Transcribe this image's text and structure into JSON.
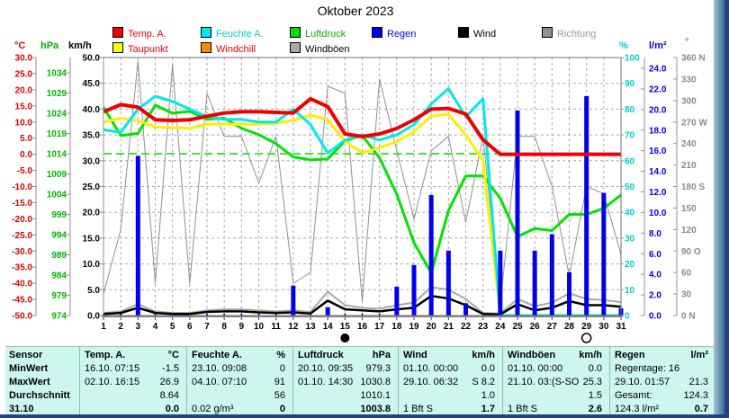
{
  "window": {
    "title": "Oktober 2023"
  },
  "units": {
    "temp": "°C",
    "pressure": "hPa",
    "wind": "km/h",
    "humidity": "%",
    "rain": "l/m²",
    "direction": "°"
  },
  "legend": {
    "row1": [
      {
        "label": "Temp. A.",
        "box": "#ee0000",
        "text": "#ee0000"
      },
      {
        "label": "Feuchte A.",
        "box": "#00e8e8",
        "text": "#00cccc"
      },
      {
        "label": "Luftdruck",
        "box": "#00dd00",
        "text": "#00b400"
      },
      {
        "label": "Regen",
        "box": "#0000ee",
        "text": "#0000e8"
      },
      {
        "label": "Wind",
        "box": "#000000",
        "text": "#000000"
      },
      {
        "label": "Richtung",
        "box": "#909090",
        "text": "#9a9a9a"
      }
    ],
    "row2": [
      {
        "label": "Taupunkt",
        "box": "#ffff00",
        "text": "#ee0000"
      },
      {
        "label": "Windchill",
        "box": "#ff8c00",
        "text": "#ee0000"
      },
      {
        "label": "Windböen",
        "box": "#a8a8a8",
        "text": "#000000"
      }
    ]
  },
  "chart_data": {
    "type": "line",
    "title": "Oktober 2023",
    "days": [
      1,
      2,
      3,
      4,
      5,
      6,
      7,
      8,
      9,
      10,
      11,
      12,
      13,
      14,
      15,
      16,
      17,
      18,
      19,
      20,
      21,
      22,
      23,
      24,
      25,
      26,
      27,
      28,
      29,
      30,
      31
    ],
    "axes": {
      "temp_c": {
        "range": [
          -50,
          30
        ],
        "step": 5,
        "decimals": 1,
        "color": "#e00000"
      },
      "pressure_hpa": {
        "range": [
          974,
          1034
        ],
        "step": 5,
        "decimals": 0,
        "color": "#00b400"
      },
      "wind_kmh": {
        "range": [
          0,
          50
        ],
        "step": 5,
        "decimals": 1,
        "color": "#000000"
      },
      "humidity_pct": {
        "range": [
          0,
          100
        ],
        "step": 10,
        "decimals": 0,
        "color": "#00cccc"
      },
      "rain_lm2": {
        "range": [
          0,
          24
        ],
        "step": 2,
        "decimals": 1,
        "color": "#0000e8"
      },
      "direction_deg": {
        "range": [
          0,
          360
        ],
        "step": 30,
        "labels": [
          "0  N",
          "30",
          "60",
          "90  O",
          "120",
          "150",
          "180 S",
          "210",
          "240",
          "270 W",
          "300",
          "330",
          "360 N"
        ],
        "color": "#8a8a8a"
      }
    },
    "series": [
      {
        "name": "Richtung",
        "axis": "direction_deg",
        "color": "#909090",
        "width": 1,
        "values": [
          30,
          120,
          355,
          45,
          350,
          45,
          310,
          250,
          250,
          185,
          250,
          45,
          60,
          320,
          310,
          20,
          330,
          230,
          135,
          230,
          250,
          130,
          250,
          15,
          250,
          250,
          180,
          55,
          180,
          170,
          85
        ]
      },
      {
        "name": "Luftdruck",
        "axis": "pressure_hpa",
        "color": "#00e400",
        "width": 3,
        "values": [
          1025.5,
          1018.5,
          1019,
          1026,
          1024,
          1024.5,
          1022.5,
          1022.8,
          1020.3,
          1018.7,
          1016.5,
          1013.2,
          1012.5,
          1012.7,
          1017.2,
          1018.5,
          1013,
          1004,
          992,
          984.5,
          1000,
          1008.5,
          1008.5,
          1003,
          993.5,
          995.5,
          995,
          999,
          999,
          1000.5,
          1003.8
        ]
      },
      {
        "name": "Taupunkt",
        "axis": "temp_c",
        "color": "#ffee00",
        "width": 3,
        "values": [
          10,
          11.2,
          10.4,
          8.5,
          8.3,
          8,
          9.3,
          9.3,
          9.3,
          9.3,
          9.6,
          10.5,
          12.1,
          10.7,
          4,
          0.5,
          2,
          4,
          7,
          11.9,
          12.4,
          6,
          -2,
          -50,
          -50,
          -50,
          -50,
          -50,
          -50,
          -50,
          -50
        ]
      },
      {
        "name": "Feuchte A.",
        "axis": "humidity_pct",
        "color": "#00e8e8",
        "width": 3,
        "values": [
          72,
          71,
          80,
          85,
          83,
          80,
          77,
          76,
          76,
          75,
          75,
          80,
          74,
          63,
          68,
          70,
          68,
          70,
          74,
          82,
          88,
          77,
          84,
          0,
          0,
          0,
          0,
          0,
          0,
          0,
          0
        ]
      },
      {
        "name": "Windböen",
        "axis": "wind_kmh",
        "color": "#a8a8a8",
        "width": 2,
        "values": [
          0.5,
          0.8,
          2.2,
          0.8,
          0.5,
          0.5,
          1,
          1.2,
          1.2,
          1,
          0.8,
          1,
          0.7,
          4.6,
          2,
          1.5,
          1.3,
          2,
          2.5,
          5.5,
          5,
          3.2,
          0.5,
          0.4,
          3.2,
          1.8,
          2.5,
          4.3,
          3.2,
          3,
          2.6
        ]
      },
      {
        "name": "Wind",
        "axis": "wind_kmh",
        "color": "#000000",
        "width": 2.5,
        "values": [
          0.3,
          0.5,
          1.5,
          0.5,
          0.3,
          0.3,
          0.7,
          0.8,
          0.8,
          0.6,
          0.5,
          0.6,
          0.4,
          2.9,
          1.2,
          1,
          0.8,
          1.2,
          1.5,
          3.8,
          3.3,
          2,
          0.3,
          0.2,
          2.2,
          1,
          1.5,
          2.8,
          2,
          2,
          1.7
        ]
      },
      {
        "name": "Temp. A.",
        "axis": "temp_c",
        "color": "#ee0000",
        "width": 4,
        "values": [
          13.2,
          15.4,
          14.6,
          10.7,
          10.5,
          10.7,
          11.8,
          12.8,
          13.2,
          13.2,
          13,
          12.8,
          17.2,
          14.8,
          6.3,
          5.5,
          6.3,
          8,
          10.7,
          14,
          14.2,
          12.5,
          4.5,
          0,
          0,
          0,
          0,
          0,
          0,
          0,
          0
        ]
      }
    ],
    "bars": {
      "name": "Regen",
      "axis": "rain_lm2",
      "color": "#0000ee",
      "values": [
        0,
        0,
        15.5,
        0,
        0,
        0,
        0,
        0,
        0,
        0,
        0,
        2.9,
        0,
        0.8,
        0,
        0,
        0,
        2.8,
        4.9,
        11.7,
        6.3,
        1.2,
        0,
        6.3,
        19.9,
        6.3,
        7.9,
        4.2,
        21.3,
        11.9,
        0.7
      ]
    },
    "reference_line": {
      "axis": "pressure_hpa",
      "value": 1014,
      "color": "#00dd00",
      "style": "dashed"
    },
    "annotations": [
      {
        "day": 15,
        "symbol": "new-moon"
      },
      {
        "day": 29,
        "symbol": "full-moon"
      }
    ]
  },
  "table": {
    "row_labels": [
      "Sensor",
      "MinWert",
      "MaxWert",
      "Durchschnitt",
      "31.10"
    ],
    "columns": [
      {
        "name": "Temp. A.",
        "unit": "°C",
        "rows": [
          [
            "16.10.  07:15",
            "-1.5"
          ],
          [
            "02.10.  16:15",
            "26.9"
          ],
          [
            "",
            "8.64"
          ],
          [
            "",
            "0.0"
          ]
        ]
      },
      {
        "name": "Feuchte A.",
        "unit": "%",
        "rows": [
          [
            "23.10.  09:08",
            "0"
          ],
          [
            "04.10.  07:10",
            "91"
          ],
          [
            "",
            "56"
          ],
          [
            "0.02 g/m³",
            "0"
          ]
        ]
      },
      {
        "name": "Luftdruck",
        "unit": "hPa",
        "rows": [
          [
            "20.10.  09:35",
            "979.3"
          ],
          [
            "01.10.  14:30",
            "1030.8"
          ],
          [
            "",
            "1010.1"
          ],
          [
            "",
            "1003.8"
          ]
        ]
      },
      {
        "name": "Wind",
        "unit": "km/h",
        "rows": [
          [
            "01.10.  00:00",
            "0.0"
          ],
          [
            "29.10.  06:32",
            "S 8.2"
          ],
          [
            "",
            "1.0"
          ],
          [
            "1 Bft S",
            "1.7"
          ]
        ]
      },
      {
        "name": "Windböen",
        "unit": "km/h",
        "rows": [
          [
            "01.10.  00:00",
            "0.0"
          ],
          [
            "21.10.  03:(S-SO",
            "25.3"
          ],
          [
            "",
            "1.5"
          ],
          [
            "1 Bft S",
            "2.6"
          ]
        ]
      },
      {
        "name": "Regen",
        "unit": "l/m²",
        "rows": [
          [
            "Regentage: 16",
            ""
          ],
          [
            "29.10.  01:57",
            "21.3"
          ],
          [
            "Gesamt:",
            "124.3"
          ],
          [
            "124.3 l/m²",
            "0.7"
          ]
        ]
      }
    ]
  }
}
